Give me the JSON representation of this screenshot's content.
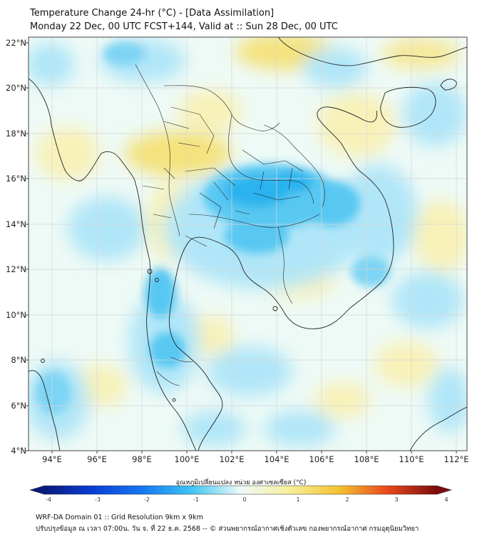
{
  "title_line1": "Temperature Change 24-hr (°C) - [Data Assimilation]",
  "title_line2": "Monday 22 Dec, 00 UTC FCST+144, Valid at :: Sun 28 Dec, 00 UTC",
  "colors": {
    "strong_cool": "#2ab3ee",
    "cool": "#58c8f2",
    "light_cool": "#b0e6f8",
    "neutral": "#eefaf6",
    "light_warm": "#f8f1b8",
    "warm": "#f4e27c",
    "coastline": "#222222",
    "grid": "#d6d6d6"
  },
  "map": {
    "lon_ticks": [
      "94°E",
      "96°E",
      "98°E",
      "100°E",
      "102°E",
      "104°E",
      "106°E",
      "108°E",
      "110°E",
      "112°E"
    ],
    "lat_ticks": [
      "22°N",
      "20°N",
      "18°N",
      "16°N",
      "14°N",
      "12°N",
      "10°N",
      "8°N",
      "6°N",
      "4°N"
    ]
  },
  "colorbar": {
    "label": "อุณหภูมิเปลี่ยนแปลง หน่วย องศาเซลเซียส (°C)",
    "ticks": [
      "-4",
      "-3",
      "-2",
      "-1",
      "0",
      "1",
      "2",
      "3",
      "4"
    ]
  },
  "footer_line1": "WRF-DA Domain 01 :: Grid Resolution 9km x 9km",
  "footer_line2": "ปรับปรุงข้อมูล ณ เวลา 07:00น. วัน จ. ที่ 22 ธ.ค. 2568 -- © ส่วนพยากรณ์อากาศเชิงตัวเลข กองพยากรณ์อากาศ กรมอุตุนิยมวิทยา"
}
